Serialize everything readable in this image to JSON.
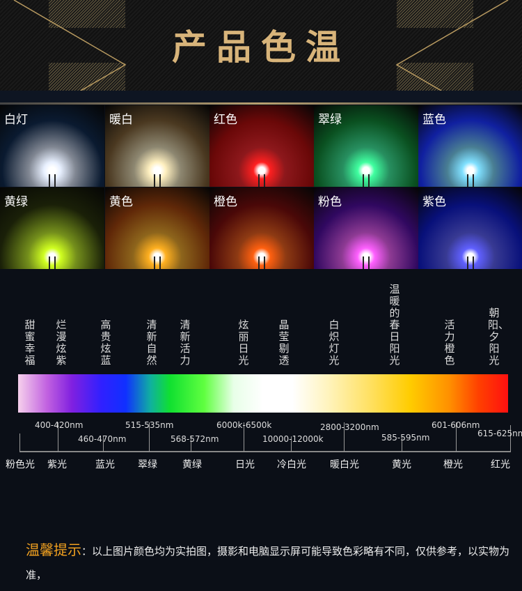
{
  "title": "产品色温",
  "colors": {
    "gold": "#d8b47a",
    "accent": "#f0a020"
  },
  "cells": [
    {
      "label": "白灯",
      "glow": "#e8f0ff",
      "bg": "#0a1a30"
    },
    {
      "label": "暖白",
      "glow": "#fff0c0",
      "bg": "#4a3820"
    },
    {
      "label": "红色",
      "glow": "#ff2020",
      "bg": "#6a0808"
    },
    {
      "label": "翠绿",
      "glow": "#40ffa0",
      "bg": "#0a5020"
    },
    {
      "label": "蓝色",
      "glow": "#80e0ff",
      "bg": "#1020a0"
    },
    {
      "label": "黄绿",
      "glow": "#d0ff20",
      "bg": "#1a2008"
    },
    {
      "label": "黄色",
      "glow": "#ffb020",
      "bg": "#602808"
    },
    {
      "label": "橙色",
      "glow": "#ff6010",
      "bg": "#4a0808"
    },
    {
      "label": "粉色",
      "glow": "#ff60ff",
      "bg": "#300860"
    },
    {
      "label": "紫色",
      "glow": "#6060ff",
      "bg": "#08107a"
    }
  ],
  "descriptors": [
    "甜蜜幸福",
    "烂漫炫紫",
    "高贵炫蓝",
    "清新自然",
    "清新活力",
    "炫丽日光",
    "晶莹剔透",
    "白炽灯光",
    "温暖的春日阳光",
    "活力橙色",
    "朝阳、夕阳光"
  ],
  "ranges": [
    "400-420nm",
    "460-470nm",
    "515-535nm",
    "568-572nm",
    "6000k-6500k",
    "10000-12000k",
    "2800-3200nm",
    "585-595nm",
    "601-606nm",
    "615-625nm"
  ],
  "names": [
    "粉色光",
    "紫光",
    "蓝光",
    "翠绿",
    "黄绿",
    "日光",
    "冷白光",
    "暖白光",
    "黄光",
    "橙光",
    "红光"
  ],
  "note": {
    "heading": "温馨提示",
    "colon": "：",
    "text": "以上图片颜色均为实拍图，摄影和电脑显示屏可能导致色彩略有不同，仅供参考，以实物为准，"
  }
}
